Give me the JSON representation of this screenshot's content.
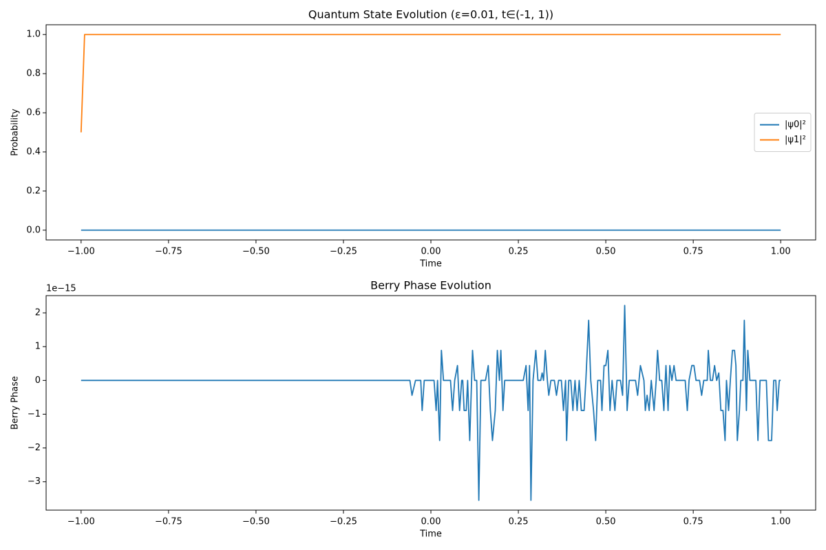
{
  "chart_data": [
    {
      "type": "line",
      "title": "Quantum State Evolution (ε=0.01, t∈(-1, 1))",
      "xlabel": "Time",
      "ylabel": "Probability",
      "x": [
        -1,
        -0.99,
        1
      ],
      "series": [
        {
          "name": "|ψ0|²",
          "color": "#1f77b4",
          "values": [
            0,
            0,
            0
          ]
        },
        {
          "name": "|ψ1|²",
          "color": "#ff7f0e",
          "values": [
            0.5,
            1,
            1
          ]
        }
      ],
      "xlim": [
        -1.1,
        1.1
      ],
      "xticks": [
        {
          "value": -1,
          "label": "−1.00"
        },
        {
          "value": -0.75,
          "label": "−0.75"
        },
        {
          "value": -0.5,
          "label": "−0.50"
        },
        {
          "value": -0.25,
          "label": "−0.25"
        },
        {
          "value": 0,
          "label": "0.00"
        },
        0.25,
        {
          "value": 0.5,
          "label": "0.50"
        },
        0.75,
        {
          "value": 1,
          "label": "1.00"
        }
      ],
      "ylim": [
        -0.05,
        1.05
      ],
      "yticks": [
        {
          "value": 0,
          "label": "0.0"
        },
        0.2,
        0.4,
        0.6,
        0.8,
        {
          "value": 1,
          "label": "1.0"
        }
      ],
      "legend": "center right"
    },
    {
      "type": "line",
      "title": "Berry Phase Evolution",
      "xlabel": "Time",
      "ylabel": "Berry Phase",
      "offset_text": "1e−15",
      "x": [
        -1,
        -0.06,
        -0.054,
        -0.044,
        -0.029,
        -0.025,
        -0.019,
        0.009,
        0.015,
        0.019,
        0.025,
        0.03,
        0.036,
        0.056,
        0.062,
        0.068,
        0.076,
        0.082,
        0.088,
        0.091,
        0.095,
        0.101,
        0.105,
        0.111,
        0.119,
        0.125,
        0.131,
        0.137,
        0.143,
        0.156,
        0.164,
        0.17,
        0.176,
        0.184,
        0.19,
        0.196,
        0.2,
        0.206,
        0.211,
        0.264,
        0.272,
        0.278,
        0.282,
        0.286,
        0.292,
        0.3,
        0.306,
        0.314,
        0.318,
        0.322,
        0.327,
        0.333,
        0.337,
        0.343,
        0.353,
        0.359,
        0.365,
        0.373,
        0.379,
        0.385,
        0.388,
        0.394,
        0.4,
        0.406,
        0.412,
        0.418,
        0.424,
        0.43,
        0.438,
        0.443,
        0.451,
        0.457,
        0.465,
        0.471,
        0.477,
        0.485,
        0.489,
        0.495,
        0.5,
        0.506,
        0.512,
        0.518,
        0.526,
        0.532,
        0.542,
        0.548,
        0.554,
        0.561,
        0.567,
        0.573,
        0.581,
        0.585,
        0.591,
        0.599,
        0.609,
        0.613,
        0.618,
        0.624,
        0.63,
        0.638,
        0.644,
        0.648,
        0.654,
        0.66,
        0.666,
        0.672,
        0.678,
        0.683,
        0.689,
        0.695,
        0.701,
        0.727,
        0.733,
        0.738,
        0.746,
        0.752,
        0.758,
        0.768,
        0.774,
        0.78,
        0.79,
        0.793,
        0.799,
        0.805,
        0.811,
        0.817,
        0.823,
        0.829,
        0.835,
        0.841,
        0.845,
        0.851,
        0.856,
        0.862,
        0.868,
        0.872,
        0.876,
        0.882,
        0.886,
        0.892,
        0.896,
        0.902,
        0.906,
        0.912,
        0.923,
        0.929,
        0.935,
        0.941,
        0.959,
        0.965,
        0.974,
        0.98,
        0.986,
        0.99,
        0.996,
        1
      ],
      "series": [
        {
          "name": "Berry Phase",
          "color": "#1f77b4",
          "values": [
            0,
            0,
            -0.44,
            0,
            0,
            -0.89,
            0,
            0,
            -0.89,
            0,
            -1.78,
            0.89,
            0,
            0,
            -0.89,
            0,
            0.44,
            -0.89,
            0,
            0,
            -0.89,
            -0.89,
            0,
            -1.78,
            0.89,
            0,
            0,
            -3.55,
            0,
            0,
            0.44,
            -0.89,
            -1.78,
            -0.89,
            0.89,
            0,
            0.89,
            -0.89,
            0,
            0,
            0.44,
            -0.89,
            0.44,
            -3.55,
            0,
            0.89,
            0,
            0,
            0.22,
            0,
            0.89,
            0,
            -0.44,
            0,
            0,
            -0.44,
            0,
            0,
            -0.89,
            0,
            -1.78,
            0,
            0,
            -0.89,
            0,
            -0.89,
            0,
            -0.89,
            -0.89,
            0,
            1.78,
            0,
            -0.89,
            -1.78,
            0,
            0,
            -0.89,
            0.44,
            0.44,
            0.89,
            -0.89,
            0,
            -0.89,
            0,
            0,
            -0.44,
            2.22,
            -0.89,
            0,
            0,
            0,
            0,
            -0.44,
            0.44,
            0,
            -0.89,
            -0.44,
            -0.89,
            0,
            -0.89,
            0,
            0.89,
            0,
            0,
            -0.89,
            0.44,
            -0.89,
            0.44,
            0,
            0.44,
            0,
            0,
            -0.89,
            0,
            0.44,
            0.44,
            0,
            0,
            -0.44,
            0,
            0,
            0.89,
            0,
            0,
            0.44,
            0,
            0.22,
            -0.89,
            -0.89,
            -1.78,
            0,
            -0.89,
            0,
            0.89,
            0.89,
            0.44,
            -1.78,
            -0.89,
            0,
            0,
            1.78,
            -0.89,
            0.89,
            0,
            0,
            0,
            -1.78,
            0,
            0,
            -1.78,
            -1.78,
            0,
            0,
            -0.89,
            0,
            0
          ]
        }
      ],
      "xlim": [
        -1.1,
        1.1
      ],
      "xticks": [
        {
          "value": -1,
          "label": "−1.00"
        },
        {
          "value": -0.75,
          "label": "−0.75"
        },
        {
          "value": -0.5,
          "label": "−0.50"
        },
        {
          "value": -0.25,
          "label": "−0.25"
        },
        {
          "value": 0,
          "label": "0.00"
        },
        0.25,
        {
          "value": 0.5,
          "label": "0.50"
        },
        0.75,
        {
          "value": 1,
          "label": "1.00"
        }
      ],
      "ylim": [
        -3.84,
        2.51
      ],
      "yticks": [
        {
          "value": -3,
          "label": "−3"
        },
        {
          "value": -2,
          "label": "−2"
        },
        {
          "value": -1,
          "label": "−1"
        },
        0,
        1,
        2
      ]
    }
  ]
}
